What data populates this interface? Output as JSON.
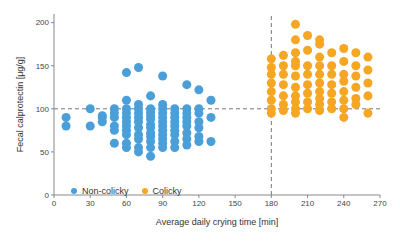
{
  "chart_data": {
    "type": "scatter",
    "x_label": "Average daily crying time [min]",
    "y_label": "Fecal calprotectin [μg/g]",
    "xlim": [
      0,
      270
    ],
    "xticks": [
      0,
      30,
      60,
      90,
      120,
      150,
      180,
      210,
      240,
      270
    ],
    "ylim": [
      0,
      210
    ],
    "yticks": [
      0,
      50,
      100,
      150,
      200
    ],
    "grid": false,
    "legend": "lower left",
    "marker": "circle",
    "reference_lines": {
      "x": 180,
      "y": 100
    },
    "series": [
      {
        "name": "Non-colicky",
        "color": "#4a9fd8",
        "x": [
          10,
          10,
          30,
          30,
          40,
          40,
          40,
          50,
          50,
          50,
          50,
          50,
          50,
          60,
          60,
          60,
          60,
          60,
          60,
          60,
          60,
          60,
          60,
          60,
          70,
          70,
          70,
          70,
          70,
          70,
          70,
          70,
          70,
          70,
          70,
          80,
          80,
          80,
          80,
          80,
          80,
          80,
          80,
          80,
          80,
          80,
          80,
          90,
          90,
          90,
          90,
          90,
          90,
          90,
          90,
          90,
          90,
          90,
          90,
          100,
          100,
          100,
          100,
          100,
          100,
          100,
          100,
          100,
          110,
          110,
          110,
          110,
          110,
          110,
          110,
          110,
          110,
          120,
          120,
          120,
          120,
          120,
          120,
          120,
          130,
          130,
          130
        ],
        "values": [
          90,
          80,
          80,
          100,
          92,
          90,
          85,
          100,
          95,
          90,
          80,
          75,
          60,
          142,
          110,
          100,
          95,
          90,
          85,
          80,
          75,
          70,
          60,
          55,
          148,
          105,
          100,
          95,
          90,
          85,
          78,
          70,
          65,
          55,
          50,
          115,
          100,
          96,
          92,
          88,
          82,
          78,
          72,
          68,
          62,
          55,
          45,
          138,
          105,
          100,
          95,
          90,
          85,
          80,
          75,
          70,
          65,
          60,
          55,
          100,
          95,
          90,
          85,
          80,
          75,
          70,
          62,
          55,
          128,
          100,
          95,
          90,
          85,
          80,
          72,
          65,
          58,
          122,
          100,
          95,
          85,
          78,
          68,
          62,
          110,
          90,
          62
        ]
      },
      {
        "name": "Colicky",
        "color": "#f5a623",
        "x": [
          180,
          180,
          180,
          180,
          180,
          180,
          180,
          180,
          190,
          190,
          190,
          190,
          190,
          190,
          190,
          200,
          200,
          200,
          200,
          200,
          200,
          200,
          200,
          200,
          200,
          200,
          210,
          210,
          210,
          210,
          210,
          210,
          210,
          210,
          220,
          220,
          220,
          220,
          220,
          220,
          220,
          220,
          220,
          220,
          230,
          230,
          230,
          230,
          230,
          230,
          230,
          240,
          240,
          240,
          240,
          240,
          240,
          240,
          240,
          250,
          250,
          250,
          250,
          250,
          250,
          260,
          260,
          260,
          260,
          260
        ],
        "values": [
          158,
          148,
          140,
          130,
          120,
          110,
          100,
          95,
          162,
          150,
          140,
          128,
          115,
          105,
          98,
          198,
          180,
          165,
          155,
          150,
          138,
          125,
          115,
          108,
          100,
          95,
          185,
          168,
          150,
          140,
          128,
          118,
          108,
          100,
          180,
          175,
          160,
          150,
          140,
          130,
          120,
          112,
          105,
          98,
          165,
          150,
          140,
          128,
          118,
          108,
          100,
          170,
          155,
          140,
          132,
          120,
          110,
          100,
          90,
          165,
          150,
          138,
          125,
          112,
          105,
          160,
          145,
          130,
          115,
          95
        ]
      }
    ]
  }
}
